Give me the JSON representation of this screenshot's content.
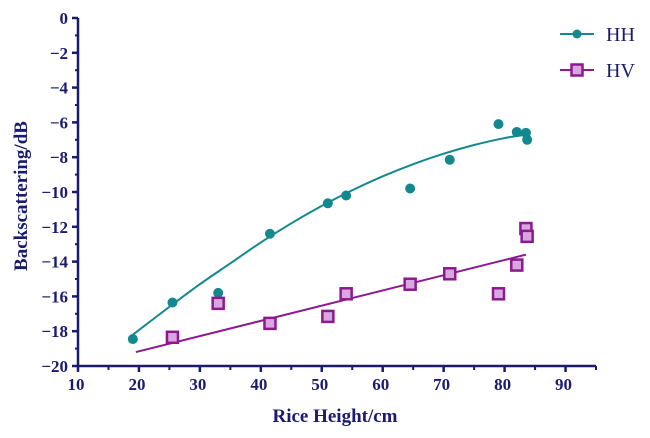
{
  "chart_data": {
    "type": "scatter",
    "xlabel": "Rice Height/cm",
    "ylabel": "Backscattering/dB",
    "xlim": [
      10,
      95
    ],
    "ylim": [
      -20,
      0
    ],
    "xticks": [
      10,
      20,
      30,
      40,
      50,
      60,
      70,
      80,
      90
    ],
    "yticks": [
      0,
      -2,
      -4,
      -6,
      -8,
      -10,
      -12,
      -14,
      -16,
      -18,
      -20
    ],
    "xtick_labels": [
      "10",
      "20",
      "30",
      "40",
      "50",
      "60",
      "70",
      "80",
      "90"
    ],
    "ytick_labels": [
      "0",
      "−2",
      "−4",
      "−6",
      "−8",
      "−10",
      "−12",
      "−14",
      "−16",
      "−18",
      "−20"
    ],
    "grid": false,
    "legend_position": "top-right",
    "series": [
      {
        "name": "HH",
        "marker": "circle",
        "color": "#14888f",
        "points": [
          [
            19,
            -18.45
          ],
          [
            25.5,
            -16.35
          ],
          [
            33,
            -15.8
          ],
          [
            41.5,
            -12.4
          ],
          [
            51,
            -10.65
          ],
          [
            54,
            -10.2
          ],
          [
            64.5,
            -9.8
          ],
          [
            71,
            -8.15
          ],
          [
            79,
            -6.1
          ],
          [
            82,
            -6.55
          ],
          [
            83.5,
            -6.6
          ],
          [
            83.7,
            -7.0
          ]
        ],
        "fit": {
          "kind": "quadratic",
          "x_range": [
            19,
            83.7
          ],
          "curve": [
            [
              19,
              -18.2
            ],
            [
              25,
              -16.6
            ],
            [
              30,
              -15.3
            ],
            [
              35,
              -14.1
            ],
            [
              40,
              -12.9
            ],
            [
              45,
              -11.8
            ],
            [
              50,
              -10.8
            ],
            [
              55,
              -9.9
            ],
            [
              60,
              -9.1
            ],
            [
              65,
              -8.4
            ],
            [
              70,
              -7.8
            ],
            [
              75,
              -7.3
            ],
            [
              80,
              -6.9
            ],
            [
              83.7,
              -6.7
            ]
          ]
        }
      },
      {
        "name": "HV",
        "marker": "square",
        "color": "#8b1a8f",
        "points": [
          [
            25.5,
            -18.35
          ],
          [
            33,
            -16.4
          ],
          [
            41.5,
            -17.55
          ],
          [
            51,
            -17.15
          ],
          [
            54,
            -15.85
          ],
          [
            64.5,
            -15.3
          ],
          [
            71,
            -14.7
          ],
          [
            79,
            -15.85
          ],
          [
            82,
            -14.2
          ],
          [
            83.5,
            -12.1
          ],
          [
            83.7,
            -12.55
          ]
        ],
        "fit": {
          "kind": "linear",
          "x_range": [
            19.5,
            83.5
          ],
          "curve": [
            [
              19.5,
              -19.2
            ],
            [
              83.5,
              -13.6
            ]
          ]
        }
      }
    ]
  }
}
